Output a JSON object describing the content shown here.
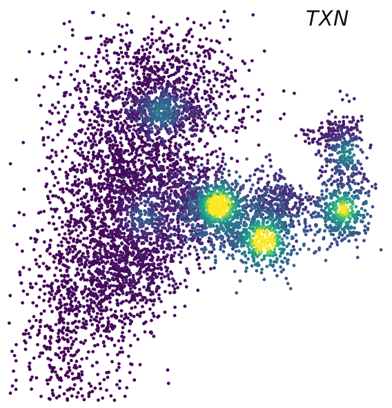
{
  "chart_data": {
    "type": "scatter",
    "title": "TXN",
    "xlabel": "",
    "ylabel": "",
    "grid": false,
    "legend": "none",
    "colormap": "viridis",
    "colors": {
      "low": "#3b0f63",
      "mid": "#21918c",
      "high": "#fde725",
      "background": "#ffffff"
    },
    "xlim": [
      0,
      100
    ],
    "ylim": [
      0,
      100
    ],
    "cell_regions": [
      {
        "cx": 40,
        "cy": 80,
        "sx": 12,
        "sy": 9,
        "n": 900,
        "expr": 0.05
      },
      {
        "cx": 33,
        "cy": 55,
        "sx": 10,
        "sy": 12,
        "n": 1400,
        "expr": 0.05
      },
      {
        "cx": 24,
        "cy": 32,
        "sx": 7,
        "sy": 13,
        "n": 700,
        "expr": 0.03
      },
      {
        "cx": 14,
        "cy": 20,
        "sx": 5,
        "sy": 12,
        "n": 260,
        "expr": 0.02
      },
      {
        "cx": 34,
        "cy": 35,
        "sx": 7,
        "sy": 6,
        "n": 400,
        "expr": 0.1
      },
      {
        "cx": 42,
        "cy": 74,
        "sx": 6,
        "sy": 3,
        "n": 300,
        "expr": 0.28
      },
      {
        "cx": 48,
        "cy": 50,
        "sx": 6,
        "sy": 6,
        "n": 500,
        "expr": 0.22
      },
      {
        "cx": 55,
        "cy": 49,
        "sx": 4,
        "sy": 4,
        "n": 420,
        "expr": 0.55
      },
      {
        "cx": 66,
        "cy": 43,
        "sx": 6,
        "sy": 5,
        "n": 560,
        "expr": 0.62
      },
      {
        "cx": 72,
        "cy": 50,
        "sx": 4,
        "sy": 4,
        "n": 300,
        "expr": 0.3
      },
      {
        "cx": 88,
        "cy": 48,
        "sx": 4,
        "sy": 4,
        "n": 340,
        "expr": 0.48
      },
      {
        "cx": 89,
        "cy": 62,
        "sx": 3,
        "sy": 6,
        "n": 240,
        "expr": 0.22
      },
      {
        "cx": 86,
        "cy": 68,
        "sx": 4,
        "sy": 1.5,
        "n": 100,
        "expr": 0.12
      },
      {
        "cx": 13,
        "cy": 6,
        "sx": 12,
        "sy": 5,
        "n": 50,
        "expr": 0.0
      }
    ],
    "hotspots": [
      {
        "x": 56,
        "y": 50,
        "value": 1.0
      },
      {
        "x": 68,
        "y": 41,
        "value": 0.95
      },
      {
        "x": 89,
        "y": 49,
        "value": 0.72
      },
      {
        "x": 90,
        "y": 63,
        "value": 0.45
      },
      {
        "x": 41,
        "y": 74,
        "value": 0.35
      },
      {
        "x": 36,
        "y": 47,
        "value": 0.3
      }
    ]
  }
}
